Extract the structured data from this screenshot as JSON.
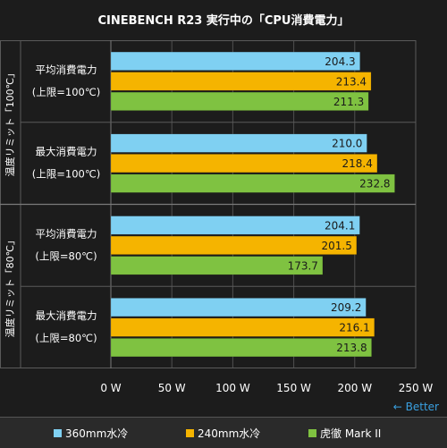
{
  "chart_data": {
    "type": "bar",
    "orientation": "horizontal",
    "title": "CINEBENCH R23 実行中の「CPU消費電力」",
    "groups": [
      {
        "label": "温度リミット「100℃」",
        "categories": [
          {
            "label_line1": "平均消費電力",
            "label_line2": "(上限=100℃)"
          },
          {
            "label_line1": "最大消費電力",
            "label_line2": "(上限=100℃)"
          }
        ]
      },
      {
        "label": "温度リミット「80℃」",
        "categories": [
          {
            "label_line1": "平均消費電力",
            "label_line2": "(上限=80℃)"
          },
          {
            "label_line1": "最大消費電力",
            "label_line2": "(上限=80℃)"
          }
        ]
      }
    ],
    "series": [
      {
        "name": "360mm水冷",
        "color": "#7fd0f2",
        "values": [
          204.3,
          210.0,
          204.1,
          209.2
        ]
      },
      {
        "name": "240mm水冷",
        "color": "#f5b400",
        "values": [
          213.4,
          218.4,
          201.5,
          216.1
        ]
      },
      {
        "name": "虎徹 Mark II",
        "color": "#7fc241",
        "values": [
          211.3,
          232.8,
          173.7,
          213.8
        ]
      }
    ],
    "xlim": [
      0,
      250
    ],
    "xticks": [
      "0 W",
      "50 W",
      "100 W",
      "150 W",
      "200 W",
      "250 W"
    ],
    "better_label": "← Better",
    "grid": true,
    "legend_position": "bottom"
  }
}
